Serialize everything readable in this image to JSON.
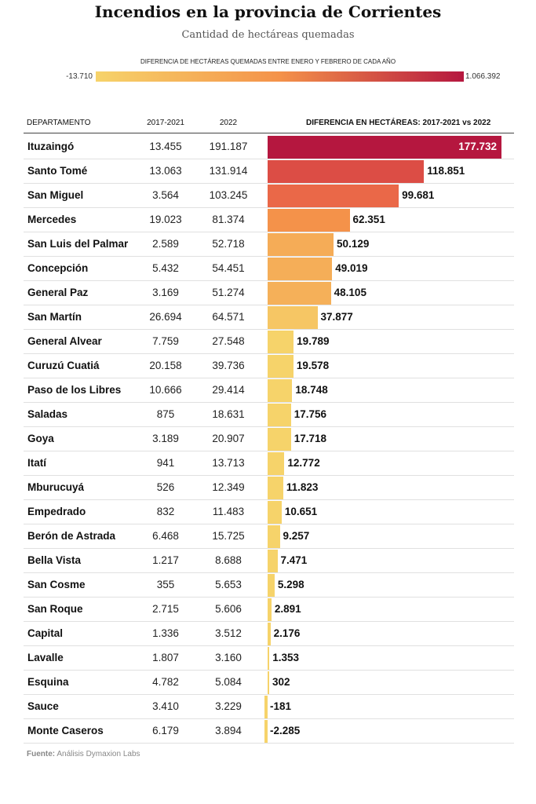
{
  "title": "Incendios en la provincia de Corrientes",
  "subtitle": "Cantidad de hectáreas quemadas",
  "legend": {
    "title": "DIFERENCIA DE HECTÁREAS QUEMADAS ENTRE ENERO Y FEBRERO DE CADA AÑO",
    "min_label": "-13.710",
    "max_label": "1.066.392",
    "min_value": -13710,
    "max_value": 1066392,
    "color_low": "#f6d36a",
    "color_mid": "#f4924a",
    "color_high": "#b5173f"
  },
  "headers": {
    "department": "DEPARTAMENTO",
    "col1": "2017-2021",
    "col2": "2022",
    "diff": "DIFERENCIA EN HECTÁREAS: 2017-2021 vs 2022"
  },
  "source_label": "Fuente:",
  "source_text": "Análisis Dymaxion Labs",
  "chart_data": {
    "type": "table",
    "columns": [
      "DEPARTAMENTO",
      "2017-2021",
      "2022",
      "DIFERENCIA EN HECTÁREAS: 2017-2021 vs 2022"
    ],
    "rows": [
      {
        "name": "Ituzaingó",
        "v1": "13.455",
        "v2": "191.187",
        "diff_label": "177.732",
        "diff": 177732
      },
      {
        "name": "Santo Tomé",
        "v1": "13.063",
        "v2": "131.914",
        "diff_label": "118.851",
        "diff": 118851
      },
      {
        "name": "San Miguel",
        "v1": "3.564",
        "v2": "103.245",
        "diff_label": "99.681",
        "diff": 99681
      },
      {
        "name": "Mercedes",
        "v1": "19.023",
        "v2": "81.374",
        "diff_label": "62.351",
        "diff": 62351
      },
      {
        "name": "San Luis del Palmar",
        "v1": "2.589",
        "v2": "52.718",
        "diff_label": "50.129",
        "diff": 50129
      },
      {
        "name": "Concepción",
        "v1": "5.432",
        "v2": "54.451",
        "diff_label": "49.019",
        "diff": 49019
      },
      {
        "name": "General Paz",
        "v1": "3.169",
        "v2": "51.274",
        "diff_label": "48.105",
        "diff": 48105
      },
      {
        "name": "San Martín",
        "v1": "26.694",
        "v2": "64.571",
        "diff_label": "37.877",
        "diff": 37877
      },
      {
        "name": "General Alvear",
        "v1": "7.759",
        "v2": "27.548",
        "diff_label": "19.789",
        "diff": 19789
      },
      {
        "name": "Curuzú Cuatiá",
        "v1": "20.158",
        "v2": "39.736",
        "diff_label": "19.578",
        "diff": 19578
      },
      {
        "name": "Paso de los Libres",
        "v1": "10.666",
        "v2": "29.414",
        "diff_label": "18.748",
        "diff": 18748
      },
      {
        "name": "Saladas",
        "v1": "875",
        "v2": "18.631",
        "diff_label": "17.756",
        "diff": 17756
      },
      {
        "name": "Goya",
        "v1": "3.189",
        "v2": "20.907",
        "diff_label": "17.718",
        "diff": 17718
      },
      {
        "name": "Itatí",
        "v1": "941",
        "v2": "13.713",
        "diff_label": "12.772",
        "diff": 12772
      },
      {
        "name": "Mburucuyá",
        "v1": "526",
        "v2": "12.349",
        "diff_label": "11.823",
        "diff": 11823
      },
      {
        "name": "Empedrado",
        "v1": "832",
        "v2": "11.483",
        "diff_label": "10.651",
        "diff": 10651
      },
      {
        "name": "Berón de Astrada",
        "v1": "6.468",
        "v2": "15.725",
        "diff_label": "9.257",
        "diff": 9257
      },
      {
        "name": "Bella Vista",
        "v1": "1.217",
        "v2": "8.688",
        "diff_label": "7.471",
        "diff": 7471
      },
      {
        "name": "San Cosme",
        "v1": "355",
        "v2": "5.653",
        "diff_label": "5.298",
        "diff": 5298
      },
      {
        "name": "San Roque",
        "v1": "2.715",
        "v2": "5.606",
        "diff_label": "2.891",
        "diff": 2891
      },
      {
        "name": "Capital",
        "v1": "1.336",
        "v2": "3.512",
        "diff_label": "2.176",
        "diff": 2176
      },
      {
        "name": "Lavalle",
        "v1": "1.807",
        "v2": "3.160",
        "diff_label": "1.353",
        "diff": 1353
      },
      {
        "name": "Esquina",
        "v1": "4.782",
        "v2": "5.084",
        "diff_label": "302",
        "diff": 302
      },
      {
        "name": "Sauce",
        "v1": "3.410",
        "v2": "3.229",
        "diff_label": "-181",
        "diff": -181
      },
      {
        "name": "Monte Caseros",
        "v1": "6.179",
        "v2": "3.894",
        "diff_label": "-2.285",
        "diff": -2285
      }
    ]
  }
}
